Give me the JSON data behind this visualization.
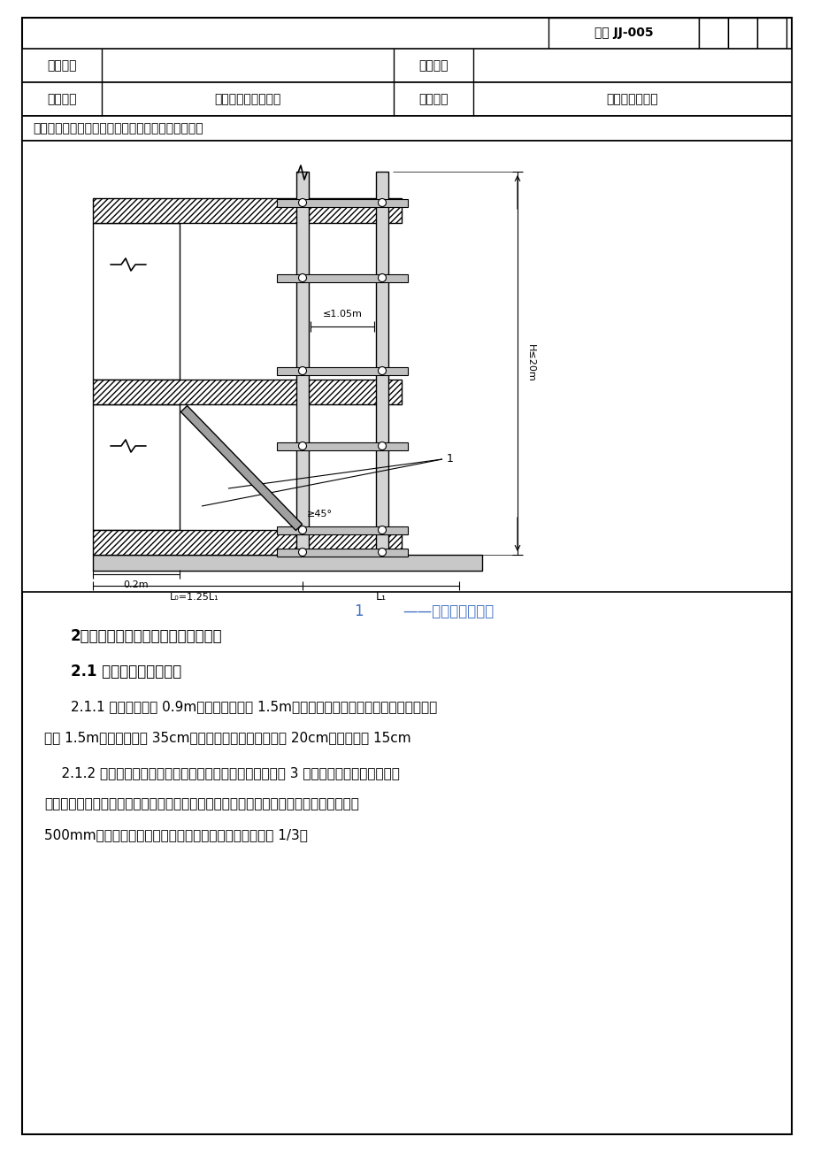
{
  "title_code": "某某 JJ-005",
  "row1_col1": "工程名称",
  "row1_col3": "施工单位",
  "row2_col1": "交底部位",
  "row2_col2": "悬挑脚手架分项工程",
  "row2_col3": "工序名称",
  "row2_col4": "悬挑脚手架施工",
  "jiaodicontent": "交底提要：悬挑脚手架的相关材料、施工工艺、方法",
  "caption": "1",
  "caption2": "钢丝绳或钢拉杆",
  "caption_dash": "——",
  "section2_title": "2、悬挑式脚手架的构造和搭设要求：",
  "section21_title": "2.1 大、小横杆、脚手板",
  "line1_211": "2.1.1 立杆横向间距 0.9m，立杆纵向间距 1.5m，每一方向间距一致，横平竖直，横杆步",
  "line2_211": "距为 1.5m。里立杆距墙 35cm，小横杆伸出外立杆连接点 20cm，离外墙面 15cm",
  "line1_212": "    2.1.2 纵向水平杆应设置在立杆内侧，单根杆长度不应小于 3 跨。两根相邻大横杆的接头",
  "line2_212": "不应设置在同跨或同步内，不同步或不同跨两个相邻接头在水平方向错开的距离不应小于",
  "line3_212": "500mm，各接头中心至最近主节点的距离不应大于纵距的 1/3。",
  "bg_color": "#ffffff",
  "caption_color": "#4472c4"
}
